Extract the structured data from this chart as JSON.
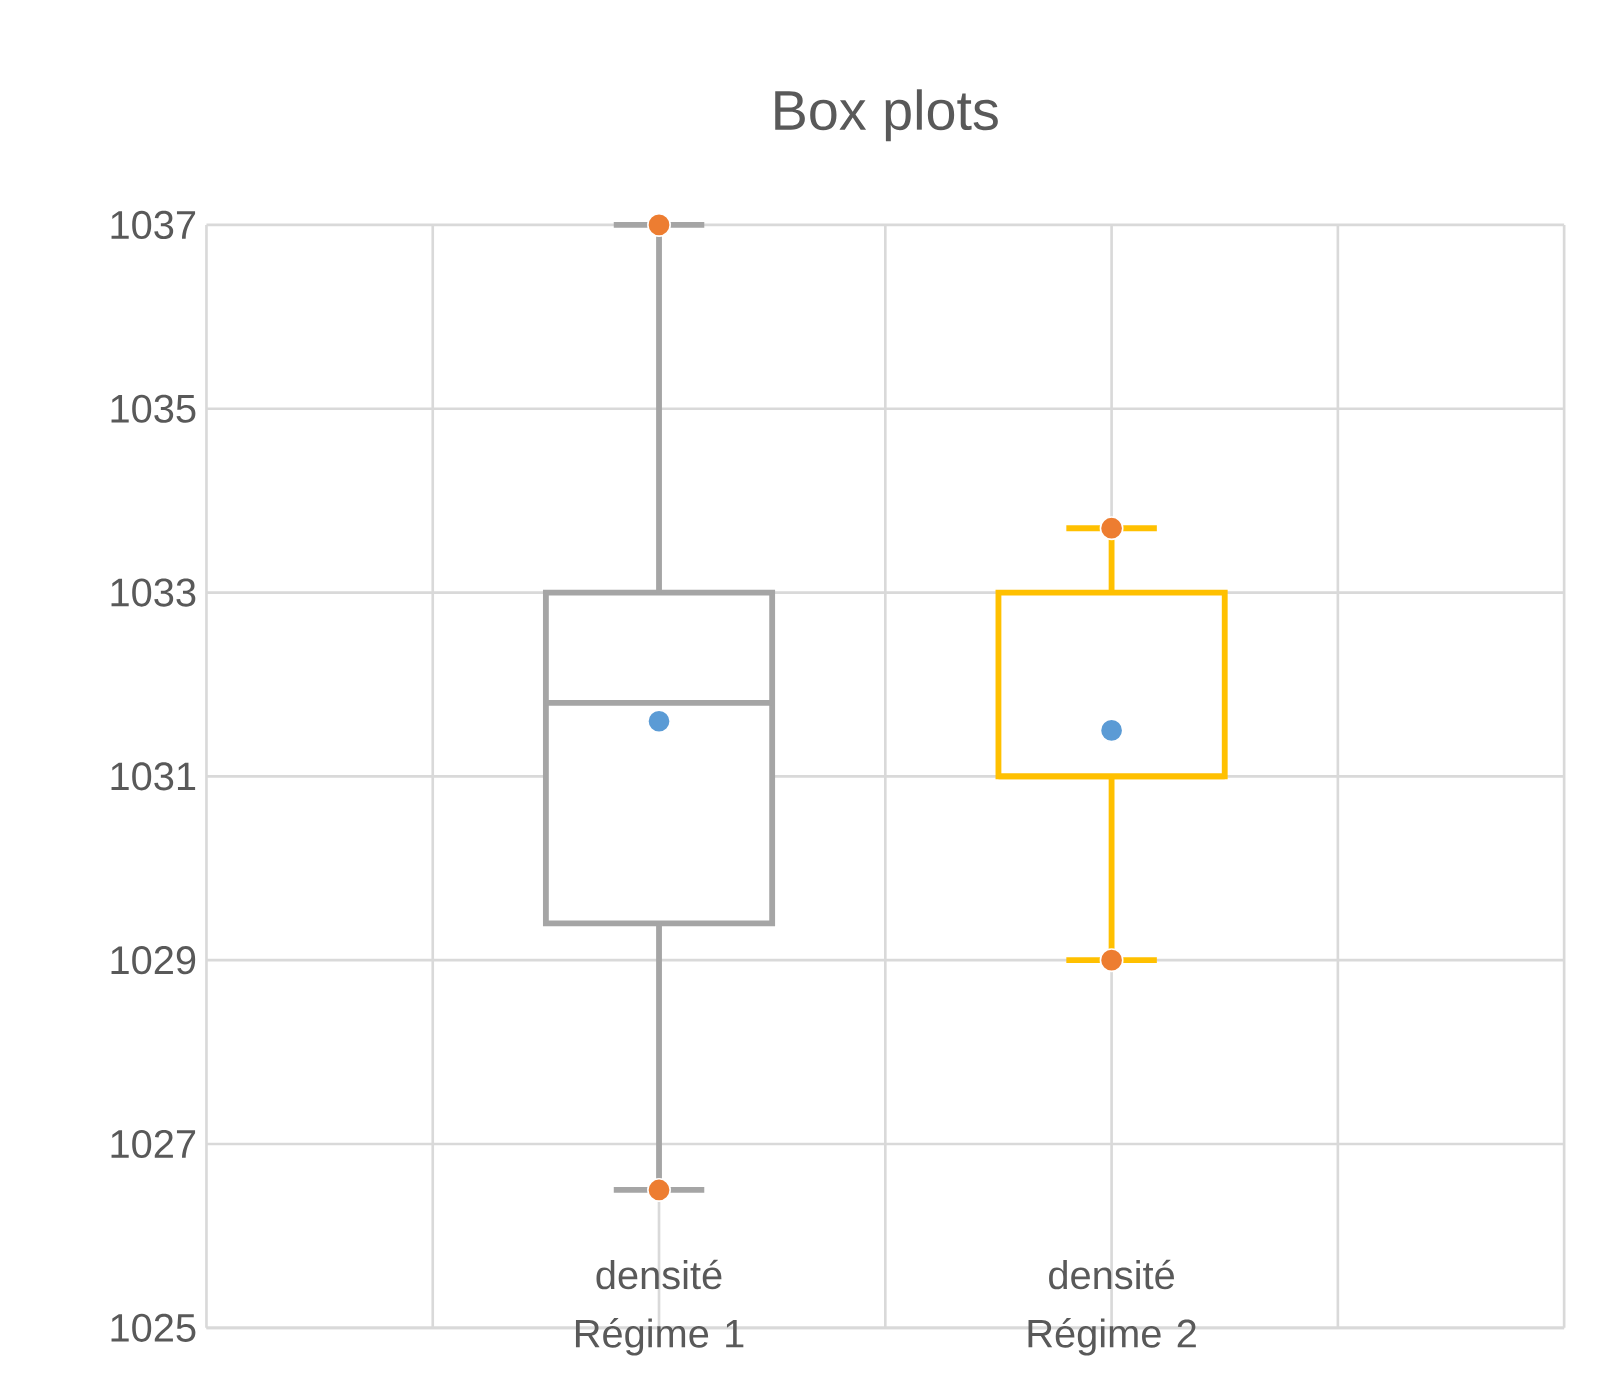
{
  "chart_data": {
    "type": "box",
    "title": "Box plots",
    "categories": [
      "densité Régime 1",
      "densité Régime 2"
    ],
    "boxes": [
      {
        "low": 1026.5,
        "q1": 1029.4,
        "median": 1031.8,
        "q3": 1033.0,
        "high": 1037.0
      },
      {
        "low": 1029.0,
        "q1": 1031.0,
        "median": 1031.0,
        "q3": 1033.0,
        "high": 1033.7
      }
    ],
    "colors": [
      "#a5a5a5",
      "#ffc000"
    ],
    "series": [
      {
        "type": "scatter",
        "x": [
          "densité Régime 1",
          "densité Régime 1",
          "densité Régime 2",
          "densité Régime 2"
        ],
        "values": [
          1037.0,
          1026.5,
          1033.7,
          1029.0
        ],
        "color": "#ed7d31"
      },
      {
        "type": "scatter",
        "x": [
          "densité Régime 1",
          "densité Régime 2"
        ],
        "values": [
          1031.6,
          1031.5
        ],
        "color": "#5b9bd5"
      }
    ],
    "ylim": [
      1025,
      1037
    ],
    "yticks": [
      1025,
      1027,
      1029,
      1031,
      1033,
      1035,
      1037
    ],
    "grid": true,
    "marker": "circle"
  }
}
